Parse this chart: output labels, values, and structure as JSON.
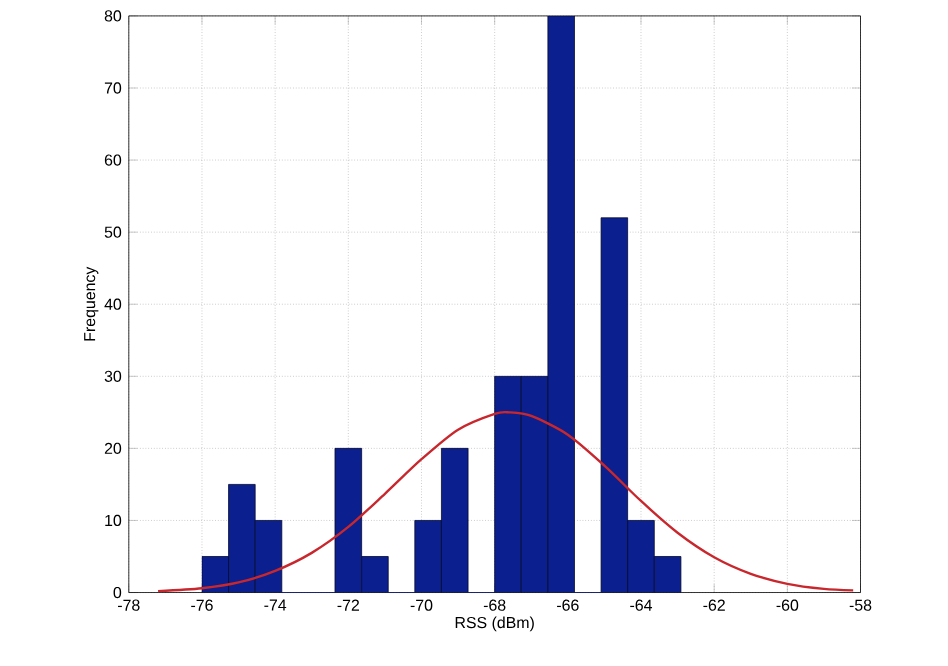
{
  "chart_data": {
    "type": "histogram",
    "xlabel": "RSS (dBm)",
    "ylabel": "Frequency",
    "bins": [
      -76,
      -75.273,
      -74.545,
      -73.818,
      -73.091,
      -72.364,
      -71.636,
      -70.909,
      -70.182,
      -69.455,
      -68.727,
      -68,
      -67.273,
      -66.545,
      -65.818,
      -65.091,
      -64.364,
      -63.636,
      -62.909
    ],
    "values": [
      5,
      15,
      10,
      0,
      0,
      20,
      5,
      0,
      10,
      20,
      0,
      30,
      30,
      80,
      0,
      52,
      10,
      5
    ],
    "color": "#0c1f8e",
    "series": [
      {
        "type": "line",
        "color": "#c8282d",
        "x": [
          -77.2,
          -76,
          -75,
          -74,
          -73,
          -72,
          -71,
          -70,
          -69,
          -68,
          -67.6,
          -67,
          -66,
          -65,
          -64,
          -63,
          -62,
          -61,
          -60,
          -59,
          -58.2
        ],
        "values": [
          0.2,
          0.6,
          1.4,
          3.0,
          5.5,
          9.1,
          13.7,
          18.5,
          22.6,
          24.8,
          25,
          24.5,
          21.9,
          17.6,
          12.7,
          8.3,
          4.9,
          2.6,
          1.2,
          0.5,
          0.3
        ]
      }
    ],
    "xlim": [
      -78,
      -58
    ],
    "ylim": [
      0,
      80
    ],
    "xticks": [
      -78,
      -76,
      -74,
      -72,
      -70,
      -68,
      -66,
      -64,
      -62,
      -60,
      -58
    ],
    "yticks": [
      0,
      10,
      20,
      30,
      40,
      50,
      60,
      70,
      80
    ],
    "grid": true,
    "marker": "none",
    "line_style": "solid"
  }
}
